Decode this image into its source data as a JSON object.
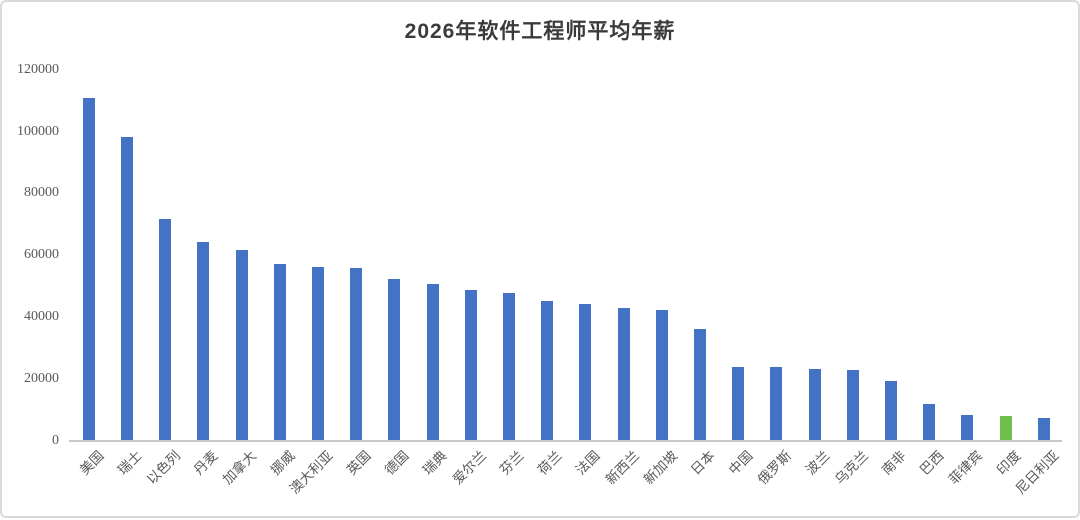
{
  "chart_data": {
    "type": "bar",
    "title": "2026年软件工程师平均年薪",
    "categories": [
      "美国",
      "瑞士",
      "以色列",
      "丹麦",
      "加拿大",
      "挪威",
      "澳大利亚",
      "英国",
      "德国",
      "瑞典",
      "爱尔兰",
      "芬兰",
      "荷兰",
      "法国",
      "新西兰",
      "新加坡",
      "日本",
      "中国",
      "俄罗斯",
      "波兰",
      "乌克兰",
      "南非",
      "巴西",
      "菲律宾",
      "印度",
      "尼日利亚"
    ],
    "values": [
      110500,
      98000,
      71500,
      64000,
      61500,
      57000,
      56000,
      55500,
      52000,
      50500,
      48500,
      47500,
      45000,
      44000,
      42500,
      42000,
      36000,
      23500,
      23500,
      23000,
      22500,
      19000,
      11500,
      8000,
      7800,
      7000
    ],
    "xlabel": "",
    "ylabel": "",
    "ylim": [
      0,
      120000
    ],
    "yticks": [
      0,
      20000,
      40000,
      60000,
      80000,
      100000,
      120000
    ],
    "grid": false,
    "legend_position": "none",
    "bar_color": "#4472C4",
    "highlight": {
      "category": "印度",
      "index": 24,
      "color": "#71BE48"
    },
    "colors": {
      "title_text": "#3b3b3b",
      "tick_label_text": "#595959",
      "axis_line": "#c8c8c8",
      "card_border": "#dadada",
      "background": "#ffffff"
    }
  }
}
